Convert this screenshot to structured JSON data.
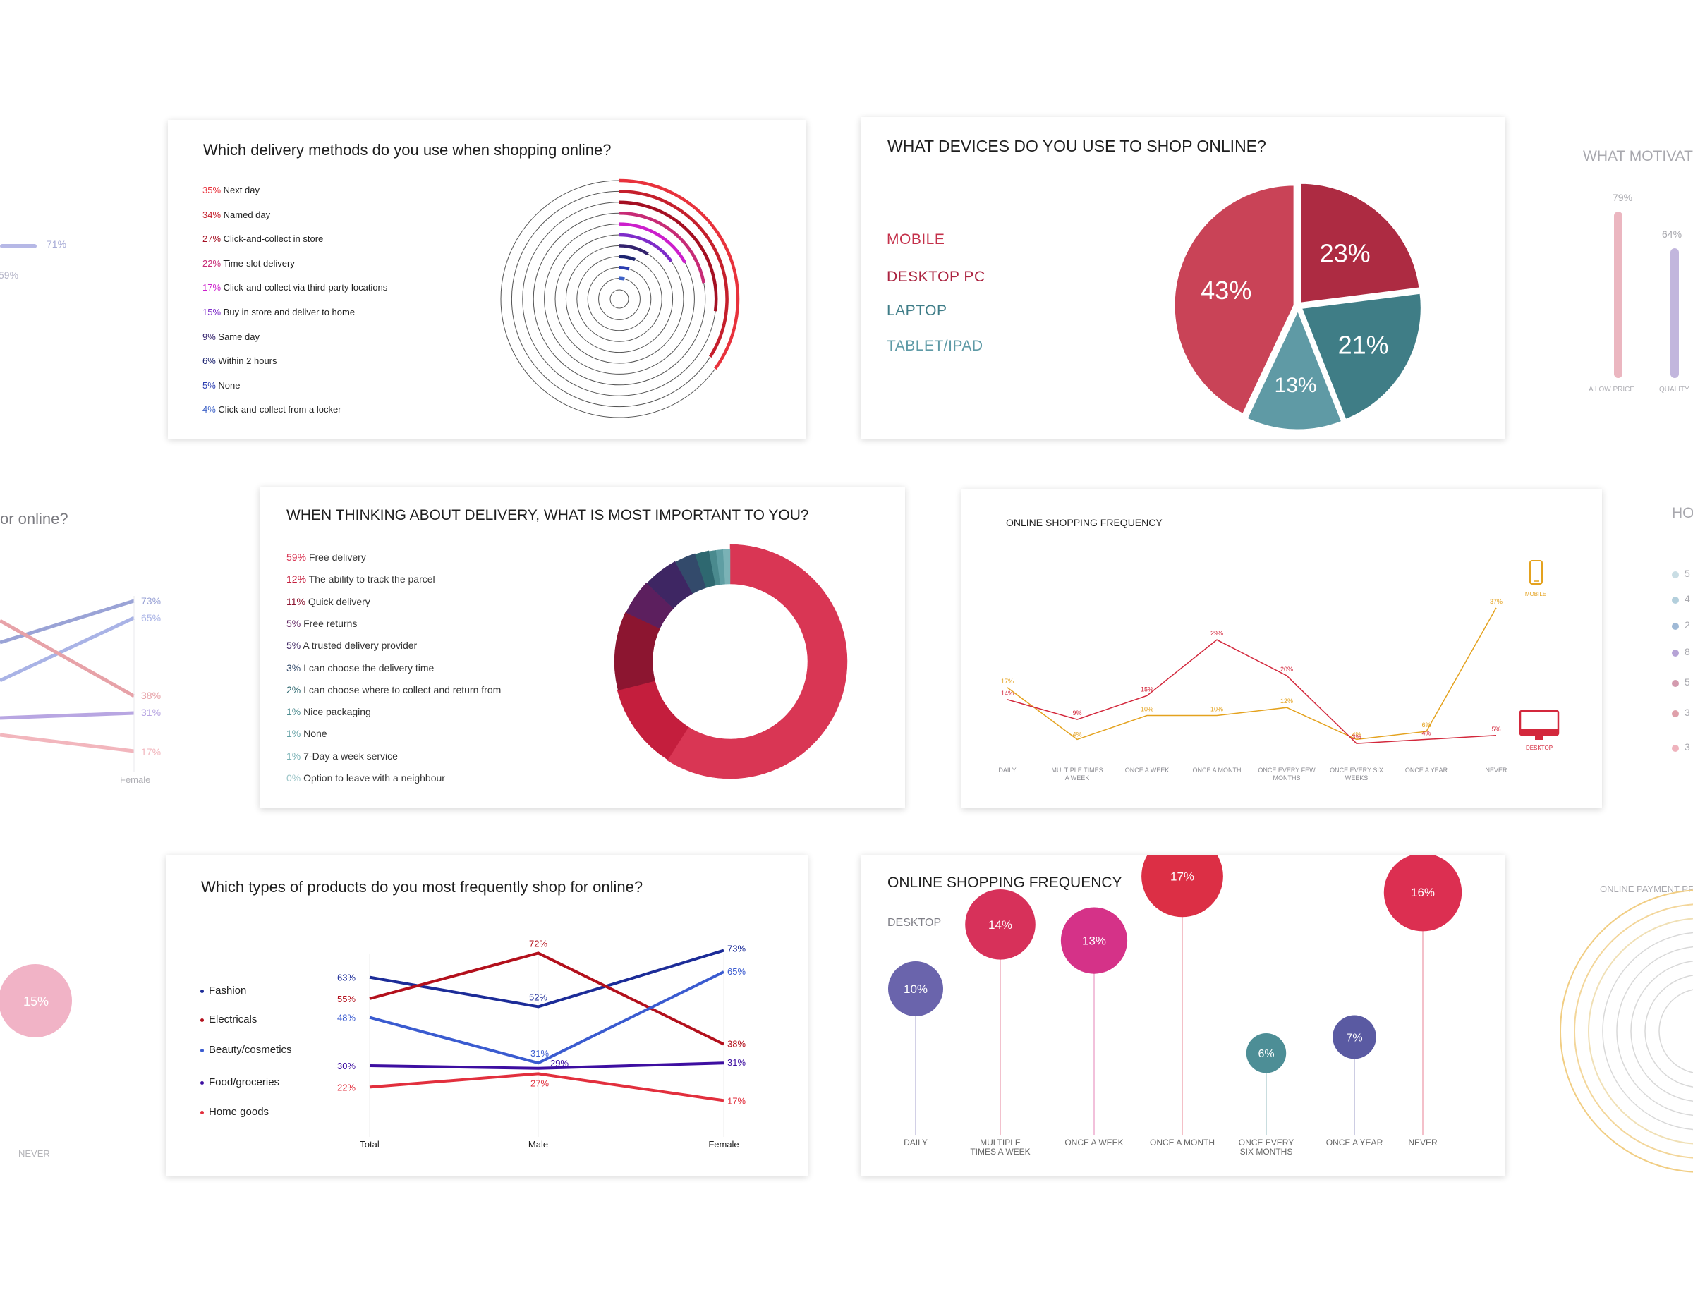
{
  "peek": {
    "left_top_value": "71%",
    "left_top_value2": "59%",
    "left_mid_question": "or online?",
    "left_mid_values": [
      {
        "label": "73%",
        "color": "#9aa3d6"
      },
      {
        "label": "65%",
        "color": "#a9b3e6"
      },
      {
        "label": "38%",
        "color": "#e7a2a8"
      },
      {
        "label": "31%",
        "color": "#b8a6e2"
      },
      {
        "label": "17%",
        "color": "#f2b6bd"
      }
    ],
    "left_mid_female": "Female",
    "left_bottom_value": "15%",
    "left_bottom_label": "NEVER",
    "right_top_title": "WHAT MOTIVATE",
    "right_top_v1": "79%",
    "right_top_v2": "64%",
    "right_top_l1": "A LOW PRICE",
    "right_top_l2": "QUALITY",
    "right_mid_title": "HO",
    "right_mid_items": [
      "5",
      "4",
      "2",
      "8",
      "5",
      "3",
      "3"
    ],
    "right_bottom_title": "ONLINE PAYMENT PR"
  },
  "delivery_methods": {
    "title": "Which delivery methods do you use when shopping online?",
    "chart_data": {
      "type": "radial-bar",
      "title": "Which delivery methods do you use when shopping online?",
      "unit": "%",
      "categories": [
        "Next day",
        "Named day",
        "Click-and-collect in store",
        "Time-slot delivery",
        "Click-and-collect via third-party locations",
        "Buy in store and deliver to home",
        "Same day",
        "Within 2 hours",
        "None",
        "Click-and-collect from a locker"
      ],
      "values": [
        35,
        34,
        27,
        22,
        17,
        15,
        9,
        6,
        5,
        4
      ],
      "labels": [
        "35%",
        "34%",
        "27%",
        "22%",
        "17%",
        "15%",
        "9%",
        "6%",
        "5%",
        "4%"
      ],
      "colors": [
        "#e8323c",
        "#c51f2c",
        "#a40f22",
        "#c72b76",
        "#cc1fcc",
        "#7e2cc9",
        "#34236e",
        "#1d2470",
        "#2a3cb0",
        "#3f63c8"
      ]
    }
  },
  "devices": {
    "title": "WHAT DEVICES DO YOU USE TO SHOP ONLINE?",
    "chart_data": {
      "type": "pie",
      "title": "WHAT DEVICES DO YOU USE TO SHOP ONLINE?",
      "unit": "%",
      "categories": [
        "MOBILE",
        "DESKTOP PC",
        "LAPTOP",
        "TABLET/IPAD"
      ],
      "values": [
        43,
        23,
        21,
        13
      ],
      "labels": [
        "43%",
        "23%",
        "21%",
        "13%"
      ],
      "colors": [
        "#c94357",
        "#ad2b42",
        "#3f7d86",
        "#5f9aa5"
      ],
      "legend_colors": [
        "#c4304a",
        "#ab2340",
        "#3e7c87",
        "#5e9aa6"
      ]
    }
  },
  "importance": {
    "title": "WHEN THINKING ABOUT DELIVERY, WHAT IS MOST IMPORTANT TO YOU?",
    "chart_data": {
      "type": "donut",
      "title": "WHEN THINKING ABOUT DELIVERY, WHAT IS MOST IMPORTANT TO YOU?",
      "unit": "%",
      "categories": [
        "Free delivery",
        "The ability to track the parcel",
        "Quick delivery",
        "Free returns",
        "A trusted delivery provider",
        "I can choose the delivery time",
        "I can choose where to collect and return from",
        "Nice packaging",
        "None",
        "7-Day a week service",
        "Option to leave with a neighbour"
      ],
      "values": [
        59,
        12,
        11,
        5,
        5,
        3,
        2,
        1,
        1,
        1,
        0
      ],
      "labels": [
        "59%",
        "12%",
        "11%",
        "5%",
        "5%",
        "3%",
        "2%",
        "1%",
        "1%",
        "1%",
        "0%"
      ],
      "colors": [
        "#d93654",
        "#c41e3d",
        "#8c1530",
        "#5c1f5e",
        "#3e2663",
        "#334a6b",
        "#2e6870",
        "#4a8a8e",
        "#5f9ea3",
        "#7ab2b6",
        "#9cc5c8"
      ]
    }
  },
  "frequency_line": {
    "title": "ONLINE SHOPPING FREQUENCY",
    "chart_data": {
      "type": "line",
      "title": "ONLINE SHOPPING FREQUENCY",
      "unit": "%",
      "categories": [
        "DAILY",
        "MULTIPLE TIMES A WEEK",
        "ONCE A WEEK",
        "ONCE A MONTH",
        "ONCE EVERY FEW MONTHS",
        "ONCE EVERY SIX WEEKS",
        "ONCE A YEAR",
        "NEVER"
      ],
      "ylim": [
        0,
        40
      ],
      "series": [
        {
          "name": "MOBILE",
          "color": "#e4a21e",
          "values": [
            17,
            4,
            10,
            10,
            12,
            4,
            6,
            37
          ]
        },
        {
          "name": "DESKTOP",
          "color": "#d3283c",
          "values": [
            14,
            9,
            15,
            29,
            20,
            3,
            4,
            5
          ]
        }
      ]
    }
  },
  "product_types": {
    "title": "Which types of products do you most frequently shop for online?",
    "chart_data": {
      "type": "line",
      "title": "Which types of products do you most frequently shop for online?",
      "unit": "%",
      "categories": [
        "Total",
        "Male",
        "Female"
      ],
      "ylim": [
        15,
        75
      ],
      "series": [
        {
          "name": "Fashion",
          "color": "#1c2c98",
          "values": [
            63,
            52,
            73
          ]
        },
        {
          "name": "Electricals",
          "color": "#b3101c",
          "values": [
            55,
            72,
            38
          ]
        },
        {
          "name": "Beauty/cosmetics",
          "color": "#3a5bd0",
          "values": [
            48,
            31,
            65
          ]
        },
        {
          "name": "Food/groceries",
          "color": "#3d0ea1",
          "values": [
            30,
            29,
            31
          ]
        },
        {
          "name": "Home goods",
          "color": "#e22f3d",
          "values": [
            22,
            27,
            17
          ]
        }
      ]
    }
  },
  "frequency_desktop": {
    "title": "ONLINE SHOPPING FREQUENCY",
    "subtitle": "DESKTOP",
    "chart_data": {
      "type": "bubble",
      "title": "ONLINE SHOPPING FREQUENCY",
      "subtitle": "DESKTOP",
      "unit": "%",
      "categories": [
        "DAILY",
        "MULTIPLE TIMES A WEEK",
        "ONCE A WEEK",
        "ONCE A MONTH",
        "ONCE EVERY SIX MONTHS",
        "ONCE A YEAR",
        "NEVER"
      ],
      "values": [
        10,
        14,
        13,
        17,
        6,
        7,
        16
      ],
      "labels": [
        "10%",
        "14%",
        "13%",
        "17%",
        "6%",
        "7%",
        "16%"
      ],
      "colors": [
        "#6a64ac",
        "#d7315a",
        "#d53288",
        "#dc2f45",
        "#4d8e96",
        "#5a5aa2",
        "#dc2f51"
      ]
    }
  }
}
